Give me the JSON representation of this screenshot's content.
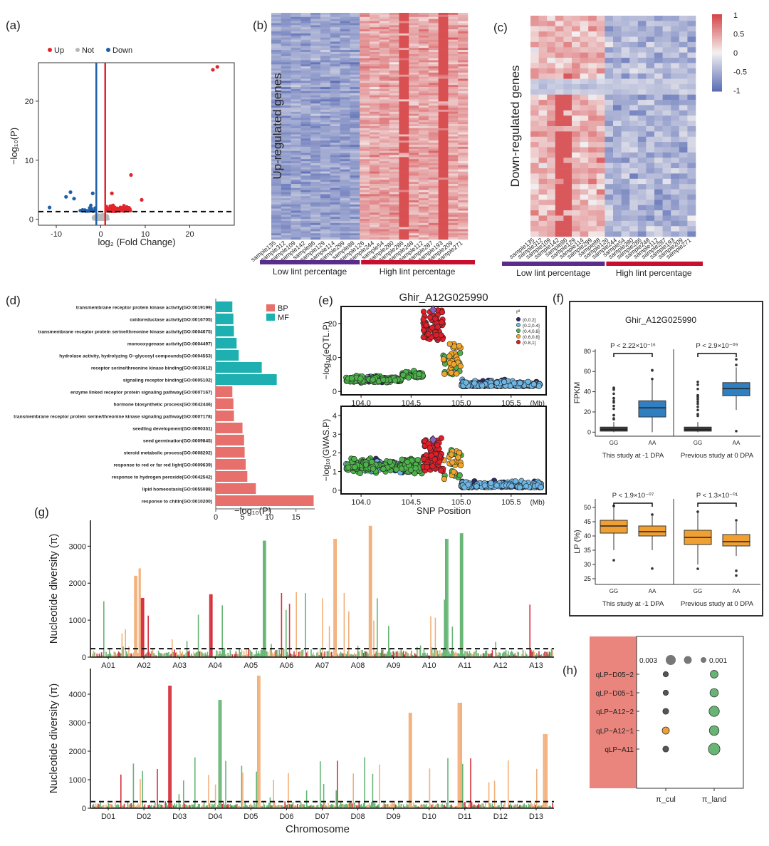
{
  "panels": {
    "a": "(a)",
    "b": "(b)",
    "c": "(c)",
    "d": "(d)",
    "e": "(e)",
    "f": "(f)",
    "g": "(g)",
    "h": "(h)"
  },
  "colors": {
    "up": "#e0262c",
    "down": "#1f5fa8",
    "not": "#b8b8b8",
    "heat_high": "#d6474a",
    "heat_low": "#5d6fb6",
    "heat_mid": "#f4f1f1",
    "low_bar": "#5a2d8a",
    "high_bar": "#c8102e",
    "bp": "#e8706c",
    "mf": "#1eb0b0",
    "r2_0": "#2a2a78",
    "r2_1": "#6cb6e6",
    "r2_2": "#4cb34a",
    "r2_3": "#f0a52a",
    "r2_4": "#e01e2a",
    "box_blue": "#2f7fc1",
    "box_orange": "#f0a032",
    "pi_green": "#66b574",
    "pi_orange": "#f2b07a",
    "pi_red": "#d7303d",
    "h_bg": "#e9857d"
  },
  "chart_data": [
    {
      "id": "a",
      "type": "scatter",
      "title": "",
      "legend": [
        "Up",
        "Not",
        "Down"
      ],
      "xlabel": "log₂ (Fold Change)",
      "ylabel": "−log₁₀(P)",
      "xlim": [
        -14,
        30
      ],
      "ylim": [
        -1,
        26.5
      ],
      "xticks": [
        "-10",
        "0",
        "10",
        "20"
      ],
      "xtick_values": [
        -10,
        0,
        10,
        20
      ],
      "yticks": [
        "0",
        "10",
        "20"
      ],
      "ytick_values": [
        0,
        10,
        20
      ],
      "vlines": [
        -1,
        1
      ],
      "hline": 1.3,
      "highlight_points": [
        {
          "x": 26.2,
          "y": 25.8,
          "group": "up"
        },
        {
          "x": 25.2,
          "y": 25.3,
          "group": "up"
        },
        {
          "x": 6.8,
          "y": 7.5,
          "group": "up"
        },
        {
          "x": 2.5,
          "y": 4.4,
          "group": "up"
        },
        {
          "x": 9.2,
          "y": 3.3,
          "group": "up"
        },
        {
          "x": -6.8,
          "y": 4.6,
          "group": "down"
        },
        {
          "x": -7.8,
          "y": 3.8,
          "group": "down"
        },
        {
          "x": -1.8,
          "y": 4.4,
          "group": "down"
        },
        {
          "x": -11.5,
          "y": 2.0,
          "group": "down"
        },
        {
          "x": -6.0,
          "y": 3.5,
          "group": "down"
        }
      ]
    },
    {
      "id": "b",
      "type": "heatmap",
      "ylabel": "Up-regulated genes",
      "columns": [
        "sample135",
        "sample312",
        "sample109",
        "sample142",
        "sample86",
        "sample129",
        "sample114",
        "sample299",
        "sample88",
        "sample126",
        "sample244",
        "sample54",
        "sample280",
        "sample286",
        "sample248",
        "sample112",
        "sample287",
        "sample193",
        "sample209",
        "sample271"
      ],
      "pattern": "low group mostly blue, high group mostly red",
      "groups": [
        "Low lint percentage",
        "High lint percentage"
      ]
    },
    {
      "id": "c",
      "type": "heatmap",
      "ylabel": "Down-regulated genes",
      "columns": [
        "sample135",
        "sample312",
        "sample109",
        "sample142",
        "sample86",
        "sample129",
        "sample114",
        "sample299",
        "sample88",
        "sample126",
        "sample244",
        "sample54",
        "sample280",
        "sample286",
        "sample248",
        "sample112",
        "sample287",
        "sample193",
        "sample209",
        "sample271"
      ],
      "groups": [
        "Low lint percentage",
        "High lint percentage"
      ],
      "colorbar_ticks": [
        "1",
        "0.5",
        "0",
        "-0.5",
        "-1"
      ],
      "colorbar_values": [
        1,
        0.5,
        0,
        -0.5,
        -1
      ]
    },
    {
      "id": "d",
      "type": "bar",
      "orientation": "horizontal",
      "xlabel": "−log₁₀(P)",
      "xticks": [
        "0",
        "5",
        "10",
        "15"
      ],
      "xtick_values": [
        0,
        5,
        10,
        15
      ],
      "xlim": [
        0,
        18.5
      ],
      "legend": [
        "BP",
        "MF"
      ],
      "categories": [
        "transmembrane receptor protein kinase activity(GO:0019199)",
        "oxidoreductase activity(GO:0016705)",
        "transmembrane receptor protein serine/threonine kinase activity(GO:0004675)",
        "monooxygenase activity(GO:0004497)",
        "hydrolase activity, hydrolyzing O−glycosyl compounds(GO:0004553)",
        "receptor serine/threonine kinase binding(GO:0033612)",
        "signaling receptor binding(GO:0005102)",
        "enzyme linked receptor protein signaling pathway(GO:0007167)",
        "hormone biosynthetic process(GO:0042446)",
        "transmembrane receptor protein serine/threonine kinase signaling pathway(GO:0007178)",
        "seedling development(GO:0090351)",
        "seed germination(GO:0009845)",
        "steroid metabolic process(GO:0008202)",
        "response to red or far red light(GO:0009639)",
        "response to hydrogen peroxide(GO:0042542)",
        "lipid homeostasis(GO:0055088)",
        "response to chitin(GO:0010200)"
      ],
      "values": [
        3.1,
        3.3,
        3.4,
        3.9,
        4.3,
        8.6,
        11.4,
        3.1,
        3.3,
        3.4,
        5.0,
        5.3,
        5.4,
        5.6,
        5.9,
        7.5,
        18.3
      ],
      "groups": [
        "MF",
        "MF",
        "MF",
        "MF",
        "MF",
        "MF",
        "MF",
        "BP",
        "BP",
        "BP",
        "BP",
        "BP",
        "BP",
        "BP",
        "BP",
        "BP",
        "BP"
      ]
    },
    {
      "id": "e",
      "type": "scatter",
      "title": "Ghir_A12G025990",
      "xlabel": "SNP Position",
      "x_unit": "(Mb)",
      "xticks": [
        "104.0",
        "104.5",
        "105.0",
        "105.5"
      ],
      "xtick_values": [
        104.0,
        104.5,
        105.0,
        105.5
      ],
      "xlim": [
        103.8,
        105.85
      ],
      "top": {
        "ylabel": "−log₁₀(eQTL.P)",
        "ylim": [
          -1,
          25
        ],
        "yticks": [
          "0",
          "10",
          "20"
        ],
        "ytick_values": [
          0,
          10,
          20
        ],
        "lead": {
          "x": 104.72,
          "y": 24.0
        }
      },
      "bottom": {
        "ylabel": "−log₁₀(GWAS.P)",
        "ylim": [
          -0.2,
          4.5
        ],
        "yticks": [
          "0",
          "1",
          "2",
          "3",
          "4"
        ],
        "ytick_values": [
          0,
          1,
          2,
          3,
          4
        ],
        "lead": {
          "x": 104.72,
          "y": 2.7
        }
      },
      "legend_title": "r²",
      "legend": [
        "(0,0.2]",
        "(0.2,0.4]",
        "(0.4,0.6]",
        "(0.6,0.8]",
        "(0.8,1]"
      ]
    },
    {
      "id": "f",
      "type": "box",
      "title": "Ghir_A12G025990",
      "top": {
        "ylabel": "FPKM",
        "ylim": [
          -4,
          82
        ],
        "yticks": [
          "0",
          "20",
          "40",
          "60",
          "80"
        ],
        "ytick_values": [
          0,
          20,
          40,
          60,
          80
        ],
        "groups": [
          {
            "label": "This study at -1 DPA",
            "p": "P < 2.22×10⁻¹⁶",
            "boxes": [
              {
                "name": "GG",
                "q1": 1,
                "median": 2.5,
                "q3": 5,
                "low": 0,
                "high": 10
              },
              {
                "name": "AA",
                "q1": 15,
                "median": 24,
                "q3": 31,
                "low": 0,
                "high": 52
              }
            ]
          },
          {
            "label": "Previous study at 0 DPA",
            "p": "P < 2.9×10⁻⁰⁹",
            "boxes": [
              {
                "name": "GG",
                "q1": 1,
                "median": 2.5,
                "q3": 5,
                "low": 0,
                "high": 10
              },
              {
                "name": "AA",
                "q1": 36,
                "median": 43,
                "q3": 49,
                "low": 22,
                "high": 64
              }
            ]
          }
        ]
      },
      "bottom": {
        "ylabel": "LP (%)",
        "ylim": [
          23,
          53
        ],
        "yticks": [
          "25",
          "30",
          "35",
          "40",
          "45",
          "50"
        ],
        "ytick_values": [
          25,
          30,
          35,
          40,
          45,
          50
        ],
        "groups": [
          {
            "label": "This study at -1 DPA",
            "p": "P < 1.9×10⁻⁰⁷",
            "boxes": [
              {
                "name": "GG",
                "q1": 41,
                "median": 43.5,
                "q3": 45.5,
                "low": 35,
                "high": 50
              },
              {
                "name": "AA",
                "q1": 40,
                "median": 41.5,
                "q3": 43.5,
                "low": 35,
                "high": 47
              }
            ]
          },
          {
            "label": "Previous study at 0 DPA",
            "p": "P < 1.3×10⁻⁰¹",
            "boxes": [
              {
                "name": "GG",
                "q1": 37,
                "median": 39.5,
                "q3": 42,
                "low": 30,
                "high": 48
              },
              {
                "name": "AA",
                "q1": 36.5,
                "median": 38,
                "q3": 40.5,
                "low": 33,
                "high": 45
              }
            ]
          }
        ]
      }
    },
    {
      "id": "g",
      "type": "bar",
      "ylabel": "Nucleotide diversity (π)",
      "xlabel": "Chromosome",
      "top": {
        "ylim": [
          0,
          3700
        ],
        "yticks": [
          "0",
          "1000",
          "2000",
          "3000"
        ],
        "ytick_values": [
          0,
          1000,
          2000,
          3000
        ],
        "threshold": 230,
        "chromosomes": [
          "A01",
          "A02",
          "A03",
          "A04",
          "A05",
          "A06",
          "A07",
          "A08",
          "A09",
          "A10",
          "A11",
          "A12",
          "A13"
        ]
      },
      "bottom": {
        "ylim": [
          0,
          4900
        ],
        "yticks": [
          "0",
          "1000",
          "2000",
          "3000",
          "4000"
        ],
        "ytick_values": [
          0,
          1000,
          2000,
          3000,
          4000
        ],
        "threshold": 230,
        "chromosomes": [
          "D01",
          "D02",
          "D03",
          "D04",
          "D05",
          "D06",
          "D07",
          "D08",
          "D09",
          "D10",
          "D11",
          "D12",
          "D13"
        ]
      }
    },
    {
      "id": "h",
      "type": "scatter",
      "legend": [
        "0.003",
        "0.001"
      ],
      "rows": [
        "qLP−D05−2",
        "qLP−D05−1",
        "qLP−A12−2",
        "qLP−A12−1",
        "qLP−A11"
      ],
      "columns": [
        "π_cul",
        "π_land"
      ],
      "sizes_cul": [
        0.001,
        0.001,
        0.0012,
        0.0016,
        0.0012
      ],
      "sizes_land": [
        0.0018,
        0.002,
        0.0026,
        0.0024,
        0.003
      ]
    }
  ]
}
